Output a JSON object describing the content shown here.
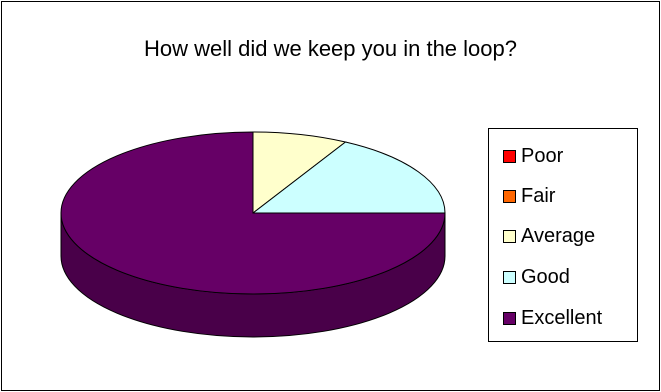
{
  "chart_data": {
    "type": "pie",
    "title": "How well did we keep you in the loop?",
    "categories": [
      "Poor",
      "Fair",
      "Average",
      "Good",
      "Excellent"
    ],
    "values": [
      0,
      0,
      8,
      17,
      75
    ],
    "colors": [
      "#FF0000",
      "#FF6600",
      "#FFFFCC",
      "#CCFFFF",
      "#660066"
    ],
    "style": "3d",
    "legend": "right"
  }
}
